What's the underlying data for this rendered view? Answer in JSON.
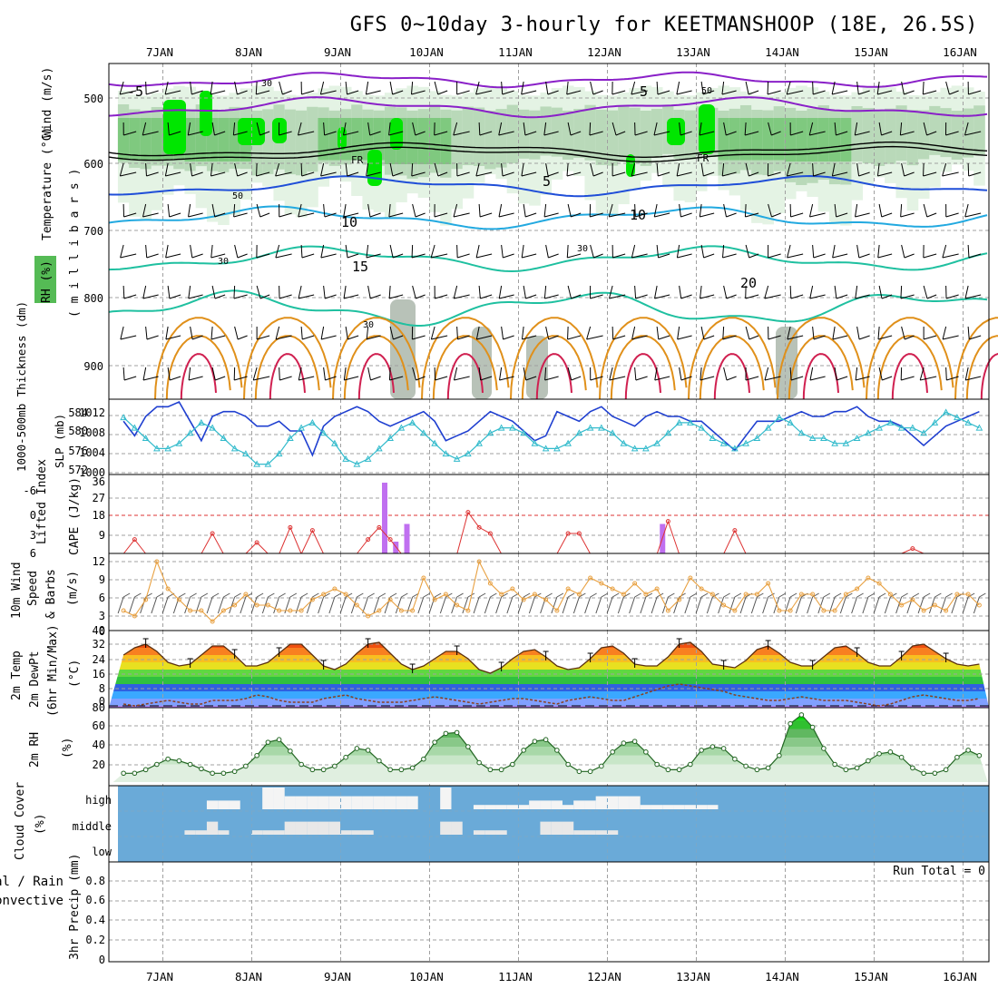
{
  "title": "GFS 0~10day 3-hourly for KEETMANSHOOP (18E, 26.5S)",
  "dates": [
    "7JAN",
    "8JAN",
    "9JAN",
    "10JAN",
    "11JAN",
    "12JAN",
    "13JAN",
    "14JAN",
    "15JAN",
    "16JAN"
  ],
  "colors": {
    "grid": "#a0a0a0",
    "rh_green_dark": "#00e600",
    "rh_green_mid": "#6cc76c",
    "temp_purple": "#8a20c8",
    "temp_blue": "#1f4ed8",
    "temp_cyan": "#22a9e0",
    "temp_teal": "#1fc0a0",
    "temp_orange": "#e0901a",
    "temp_red": "#d02050",
    "slp_line": "#1f3fd0",
    "thickness_line": "#33bbcc",
    "cape_bar": "#c070f0",
    "li_line": "#dd3333",
    "wind_line": "#e8a040",
    "cloud_bg": "#6aaad8",
    "cloud_fill": "#eeeeee"
  },
  "panels": {
    "upper": {
      "ylabel_wind": "Wind (m/s)",
      "ylabel_temp": "Temperature (°C)",
      "ylabel_mb": "( m i l l i b a r s )",
      "ylabel_rh": "RH (%)",
      "yticks": [
        "500",
        "600",
        "700",
        "800",
        "900"
      ],
      "contour_labels": [
        "-5",
        "5",
        "5",
        "10",
        "10",
        "15",
        "20",
        "30",
        "30",
        "30",
        "30",
        "50",
        "50",
        "FR",
        "FR"
      ]
    },
    "slp": {
      "ylabel_left": "1000-500mb Thickness (dm)",
      "ylabel_right": "SLP (mb)",
      "left_ticks": [
        "584",
        "580",
        "576",
        "572"
      ],
      "right_ticks": [
        "1012",
        "1008",
        "1004",
        "1000"
      ]
    },
    "cape": {
      "ylabel_left": "Lifted Index",
      "ylabel_right": "CAPE (J/kg)",
      "left_ticks": [
        "-6",
        "-3",
        "0",
        "3",
        "6"
      ],
      "right_ticks": [
        "36",
        "27",
        "18",
        "9"
      ]
    },
    "wind": {
      "ylabel1": "10m Wind",
      "ylabel2": "Speed",
      "ylabel3": "& Barbs",
      "ylabel_unit": "(m/s)",
      "ticks": [
        "12",
        "9",
        "6",
        "3",
        "0"
      ]
    },
    "temp": {
      "ylabel1": "2m Temp",
      "ylabel2": "2m DewPt",
      "ylabel3": "(6hr Min/Max)",
      "ylabel_unit": "(°C)",
      "ticks": [
        "40",
        "32",
        "24",
        "16",
        "8",
        "0"
      ]
    },
    "rh": {
      "ylabel": "2m RH",
      "ylabel_unit": "(%)",
      "ticks": [
        "80",
        "60",
        "40",
        "20"
      ]
    },
    "cloud": {
      "ylabel": "Cloud Cover",
      "ylabel_unit": "(%)",
      "levels": [
        "high",
        "middle",
        "low"
      ]
    },
    "precip": {
      "ylabel1": "Total / Rain",
      "ylabel2": "Convective",
      "ylabel3": "3hr Precip (mm)",
      "ticks": [
        "0.8",
        "0.6",
        "0.4",
        "0.2",
        "0"
      ],
      "run_total": "Run Total = 0"
    }
  },
  "chart_data": [
    {
      "type": "line",
      "title": "SLP / 1000-500mb Thickness",
      "series": [
        {
          "name": "SLP (mb)",
          "values": [
            1010,
            1007,
            1011,
            1013,
            1013,
            1014,
            1010,
            1006,
            1011,
            1012,
            1012,
            1011,
            1009,
            1009,
            1010,
            1008,
            1008,
            1003,
            1009,
            1011,
            1012,
            1013,
            1012,
            1010,
            1009,
            1010,
            1011,
            1012,
            1010,
            1006,
            1007,
            1008,
            1010,
            1012,
            1011,
            1010,
            1008,
            1006,
            1007,
            1012,
            1011,
            1010,
            1012,
            1013,
            1011,
            1010,
            1009,
            1011,
            1012,
            1011,
            1011,
            1010,
            1010,
            1008,
            1006,
            1004,
            1007,
            1010,
            1010,
            1010,
            1011,
            1012,
            1011,
            1011,
            1012,
            1012,
            1013,
            1011,
            1010,
            1010,
            1009,
            1007,
            1005,
            1007,
            1009,
            1010,
            1011,
            1012
          ]
        },
        {
          "name": "Thickness (dm)",
          "values": [
            582,
            580,
            578,
            576,
            576,
            577,
            579,
            581,
            580,
            578,
            576,
            575,
            573,
            573,
            575,
            578,
            580,
            581,
            579,
            577,
            574,
            573,
            574,
            576,
            578,
            580,
            581,
            579,
            577,
            575,
            574,
            575,
            577,
            579,
            580,
            580,
            579,
            577,
            576,
            576,
            577,
            579,
            580,
            580,
            579,
            577,
            576,
            576,
            577,
            579,
            581,
            581,
            580,
            578,
            577,
            576,
            577,
            578,
            580,
            582,
            581,
            579,
            578,
            578,
            577,
            577,
            578,
            579,
            580,
            581,
            580,
            580,
            579,
            581,
            583,
            582,
            581,
            580
          ]
        }
      ]
    },
    {
      "type": "bar",
      "title": "CAPE (J/kg)",
      "x": [
        9.5,
        9.625,
        9.75,
        12.625
      ],
      "values": [
        36,
        6,
        15,
        15
      ]
    },
    {
      "type": "line",
      "title": "10m Wind Speed (m/s)",
      "values": [
        3,
        2,
        5,
        12,
        7,
        5,
        3,
        3,
        1,
        3,
        4,
        6,
        4,
        4,
        3,
        3,
        3,
        5,
        6,
        7,
        6,
        4,
        2,
        3,
        5,
        3,
        3,
        9,
        5,
        6,
        4,
        3,
        12,
        8,
        6,
        7,
        5,
        6,
        5,
        3,
        7,
        6,
        9,
        8,
        7,
        6,
        8,
        6,
        7,
        3,
        5,
        9,
        7,
        6,
        4,
        3,
        6,
        6,
        8,
        3,
        3,
        6,
        6,
        3,
        3,
        6,
        7,
        9,
        8,
        6,
        4,
        5,
        3,
        4,
        3,
        6,
        6,
        4
      ]
    },
    {
      "type": "area",
      "title": "2m Temp / DewPt (°C)",
      "series": [
        {
          "name": "2m Temp",
          "values": [
            28,
            32,
            34,
            30,
            24,
            22,
            23,
            28,
            33,
            33,
            28,
            22,
            22,
            24,
            29,
            34,
            34,
            28,
            22,
            20,
            23,
            29,
            34,
            35,
            29,
            23,
            20,
            22,
            26,
            30,
            30,
            26,
            20,
            18,
            21,
            26,
            30,
            31,
            27,
            22,
            20,
            21,
            26,
            32,
            33,
            29,
            23,
            22,
            22,
            27,
            34,
            35,
            30,
            23,
            22,
            21,
            25,
            31,
            33,
            29,
            24,
            22,
            22,
            27,
            32,
            33,
            29,
            24,
            22,
            22,
            27,
            33,
            34,
            30,
            26,
            23,
            22,
            23
          ]
        },
        {
          "name": "2m DewPt",
          "values": [
            1,
            0,
            1,
            2,
            3,
            2,
            1,
            1,
            3,
            3,
            3,
            4,
            6,
            5,
            3,
            2,
            2,
            2,
            4,
            5,
            6,
            4,
            3,
            2,
            2,
            2,
            3,
            4,
            5,
            4,
            3,
            2,
            1,
            2,
            3,
            4,
            4,
            3,
            2,
            1,
            3,
            4,
            5,
            4,
            3,
            3,
            5,
            7,
            9,
            11,
            12,
            11,
            10,
            9,
            8,
            6,
            5,
            4,
            3,
            3,
            4,
            5,
            4,
            3,
            3,
            3,
            2,
            1,
            0,
            1,
            3,
            5,
            6,
            5,
            4,
            3,
            3,
            4
          ]
        }
      ]
    },
    {
      "type": "area",
      "title": "2m RH (%)",
      "values": [
        10,
        10,
        14,
        20,
        26,
        24,
        20,
        15,
        10,
        10,
        12,
        18,
        30,
        45,
        48,
        35,
        20,
        14,
        14,
        18,
        28,
        38,
        36,
        24,
        14,
        14,
        16,
        26,
        45,
        55,
        56,
        40,
        22,
        14,
        14,
        20,
        36,
        46,
        48,
        36,
        20,
        12,
        12,
        18,
        34,
        44,
        46,
        34,
        20,
        14,
        14,
        20,
        36,
        40,
        38,
        26,
        18,
        14,
        16,
        30,
        66,
        76,
        62,
        38,
        20,
        14,
        16,
        24,
        32,
        34,
        28,
        16,
        10,
        10,
        14,
        28,
        36,
        30
      ]
    },
    {
      "type": "bar",
      "title": "Cloud Cover (%)",
      "x_start": 6.5,
      "step_days": 0.125,
      "series": [
        {
          "name": "high",
          "values": [
            0,
            0,
            0,
            0,
            0,
            0,
            0,
            0,
            40,
            40,
            40,
            0,
            0,
            100,
            100,
            60,
            60,
            60,
            60,
            60,
            60,
            60,
            60,
            60,
            60,
            60,
            60,
            0,
            0,
            100,
            0,
            0,
            20,
            20,
            20,
            20,
            20,
            40,
            40,
            40,
            20,
            40,
            40,
            60,
            60,
            60,
            60,
            20,
            20,
            20,
            20,
            20,
            20,
            20,
            0,
            0,
            0,
            0,
            0,
            0,
            0,
            0,
            0,
            0,
            0,
            0,
            0,
            0,
            0,
            0,
            0,
            0,
            0,
            0,
            0,
            0,
            0,
            0
          ]
        },
        {
          "name": "middle",
          "values": [
            0,
            0,
            0,
            0,
            0,
            0,
            20,
            20,
            60,
            20,
            0,
            0,
            20,
            20,
            20,
            60,
            60,
            60,
            60,
            60,
            20,
            20,
            20,
            0,
            0,
            0,
            0,
            0,
            0,
            60,
            60,
            0,
            20,
            20,
            20,
            0,
            0,
            0,
            60,
            60,
            60,
            20,
            20,
            20,
            20,
            0,
            0,
            0,
            0,
            0,
            0,
            0,
            0,
            0,
            0,
            0,
            0,
            0,
            0,
            0,
            0,
            0,
            0,
            0,
            0,
            0,
            0,
            0,
            0,
            0,
            0,
            0,
            0,
            0,
            0,
            0,
            0,
            0
          ]
        }
      ]
    },
    {
      "type": "line",
      "title": "3hr Precip (mm)",
      "values": [
        0,
        0,
        0,
        0,
        0,
        0,
        0,
        0,
        0,
        0
      ]
    }
  ]
}
